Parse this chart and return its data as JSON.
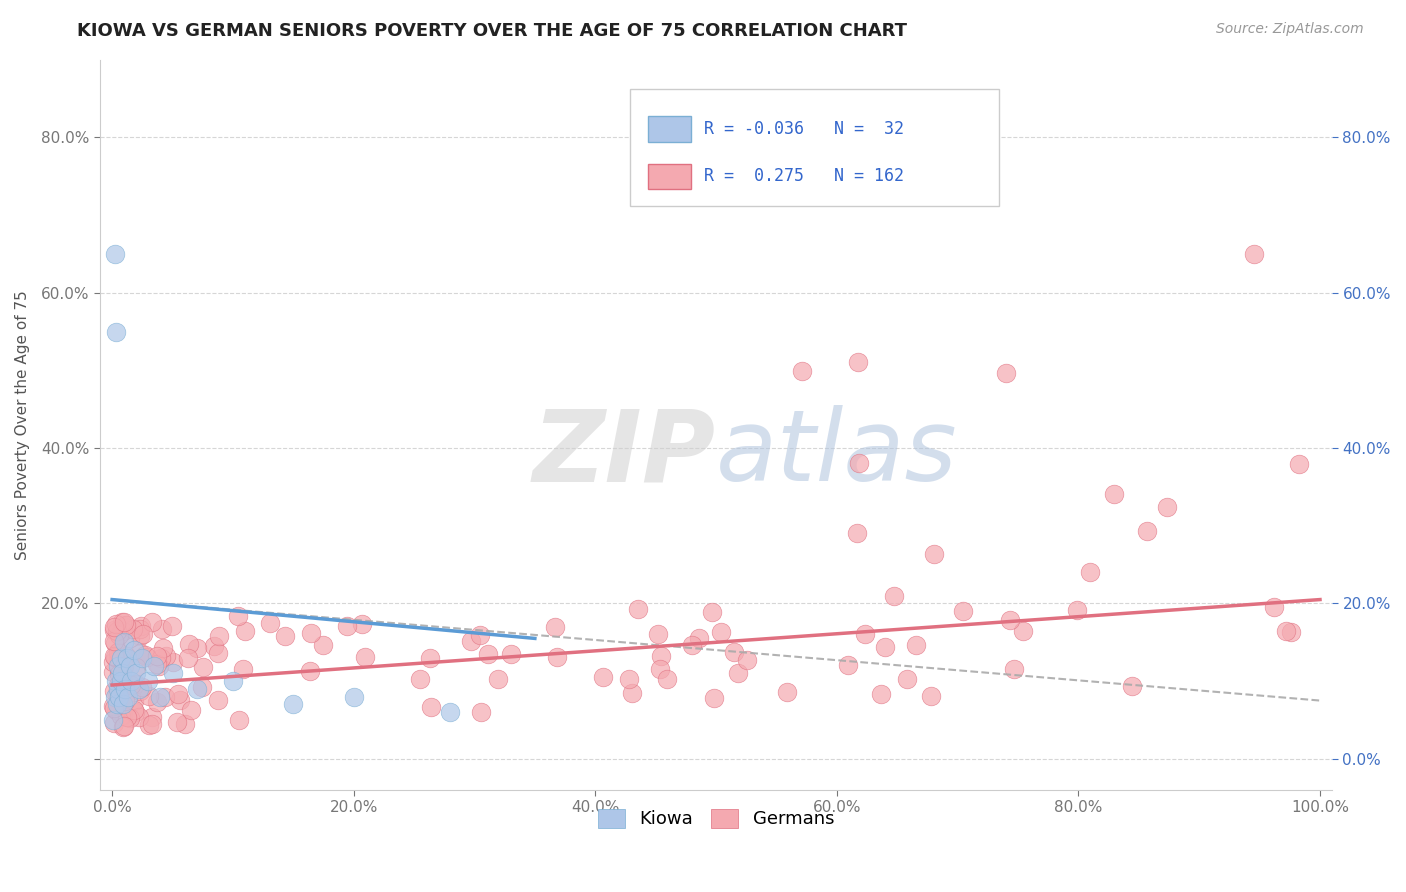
{
  "title": "KIOWA VS GERMAN SENIORS POVERTY OVER THE AGE OF 75 CORRELATION CHART",
  "source": "Source: ZipAtlas.com",
  "ylabel": "Seniors Poverty Over the Age of 75",
  "xlim": [
    -0.01,
    1.01
  ],
  "ylim": [
    -0.04,
    0.9
  ],
  "xticks": [
    0.0,
    0.2,
    0.4,
    0.6,
    0.8,
    1.0
  ],
  "xticklabels": [
    "0.0%",
    "20.0%",
    "40.0%",
    "60.0%",
    "80.0%",
    "100.0%"
  ],
  "yticks": [
    0.0,
    0.2,
    0.4,
    0.6,
    0.8
  ],
  "yticklabels_left": [
    "",
    "20.0%",
    "40.0%",
    "60.0%",
    "80.0%"
  ],
  "yticklabels_right": [
    "0.0%",
    "20.0%",
    "40.0%",
    "60.0%",
    "80.0%"
  ],
  "kiowa_color": "#aec6e8",
  "kiowa_edge": "#7bafd4",
  "german_color": "#f4a9b0",
  "german_edge": "#e07080",
  "kiowa_R": -0.036,
  "kiowa_N": 32,
  "german_R": 0.275,
  "german_N": 162,
  "kiowa_line_color": "#5b9bd5",
  "german_line_color": "#e07080",
  "dashed_line_color": "#aaaaaa",
  "background_color": "#ffffff",
  "grid_color": "#cccccc",
  "title_color": "#222222",
  "axis_label_color": "#555555",
  "tick_color": "#777777",
  "right_tick_color": "#4472c4",
  "legend_text_color": "#3366cc",
  "watermark_zip": "#cccccc",
  "watermark_atlas": "#aabbd4"
}
